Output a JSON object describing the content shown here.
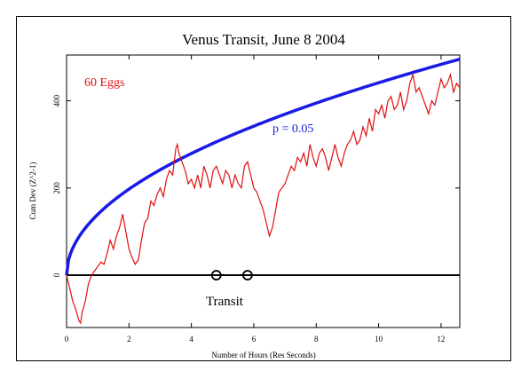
{
  "chart_data": {
    "type": "line",
    "title": "Venus Transit, June 8 2004",
    "xlabel": "Number of Hours (Res Seconds)",
    "ylabel": "Cum Dev (Z^2-1)",
    "xlim": [
      0,
      12.6
    ],
    "ylim": [
      -120,
      505
    ],
    "x_ticks": [
      0,
      2,
      4,
      6,
      8,
      10,
      12
    ],
    "y_ticks": [
      0,
      200,
      400
    ],
    "grid": false,
    "annotations": {
      "eggs": "60 Eggs",
      "p_label": "p = 0.05",
      "transit": "Transit"
    },
    "markers_x": [
      4.8,
      5.8
    ],
    "envelope": {
      "name": "p = 0.05",
      "color": "#1a1ae6",
      "formula": "1.645*sqrt(2*seconds)",
      "x_max_hours": 12.6
    },
    "series": [
      {
        "color": "#e01010",
        "x": [
          0,
          0.1,
          0.2,
          0.3,
          0.4,
          0.45,
          0.5,
          0.6,
          0.7,
          0.8,
          0.9,
          1.0,
          1.1,
          1.2,
          1.3,
          1.4,
          1.5,
          1.6,
          1.7,
          1.8,
          1.9,
          2.0,
          2.1,
          2.2,
          2.3,
          2.4,
          2.5,
          2.6,
          2.7,
          2.8,
          2.9,
          3.0,
          3.1,
          3.2,
          3.3,
          3.4,
          3.5,
          3.55,
          3.6,
          3.7,
          3.8,
          3.9,
          4.0,
          4.1,
          4.2,
          4.3,
          4.4,
          4.5,
          4.6,
          4.7,
          4.8,
          4.9,
          5.0,
          5.1,
          5.2,
          5.3,
          5.4,
          5.5,
          5.6,
          5.7,
          5.8,
          5.9,
          6.0,
          6.1,
          6.2,
          6.3,
          6.4,
          6.5,
          6.6,
          6.7,
          6.8,
          6.9,
          7.0,
          7.1,
          7.2,
          7.3,
          7.4,
          7.5,
          7.6,
          7.7,
          7.8,
          7.9,
          8.0,
          8.1,
          8.2,
          8.3,
          8.4,
          8.5,
          8.6,
          8.7,
          8.8,
          8.9,
          9.0,
          9.1,
          9.2,
          9.3,
          9.4,
          9.5,
          9.6,
          9.7,
          9.8,
          9.9,
          10.0,
          10.1,
          10.2,
          10.3,
          10.4,
          10.5,
          10.6,
          10.7,
          10.8,
          10.9,
          11.0,
          11.1,
          11.2,
          11.3,
          11.4,
          11.5,
          11.6,
          11.7,
          11.8,
          11.9,
          12.0,
          12.1,
          12.2,
          12.3,
          12.4,
          12.5,
          12.6
        ],
        "values": [
          0,
          -30,
          -60,
          -80,
          -105,
          -110,
          -85,
          -60,
          -20,
          0,
          10,
          20,
          30,
          25,
          50,
          80,
          60,
          90,
          110,
          140,
          100,
          60,
          40,
          25,
          35,
          80,
          120,
          130,
          170,
          160,
          185,
          200,
          180,
          220,
          240,
          230,
          290,
          300,
          280,
          260,
          240,
          210,
          220,
          200,
          230,
          200,
          250,
          230,
          200,
          240,
          250,
          230,
          210,
          240,
          230,
          200,
          230,
          210,
          200,
          250,
          260,
          230,
          200,
          190,
          170,
          150,
          120,
          90,
          110,
          150,
          190,
          200,
          210,
          230,
          250,
          240,
          270,
          260,
          280,
          250,
          300,
          270,
          250,
          280,
          290,
          270,
          240,
          270,
          300,
          270,
          250,
          280,
          300,
          310,
          330,
          300,
          310,
          340,
          320,
          360,
          330,
          380,
          370,
          390,
          360,
          400,
          410,
          380,
          390,
          420,
          380,
          400,
          440,
          460,
          420,
          430,
          410,
          390,
          370,
          400,
          390,
          420,
          450,
          430,
          440,
          460,
          420,
          440,
          430
        ]
      }
    ]
  }
}
